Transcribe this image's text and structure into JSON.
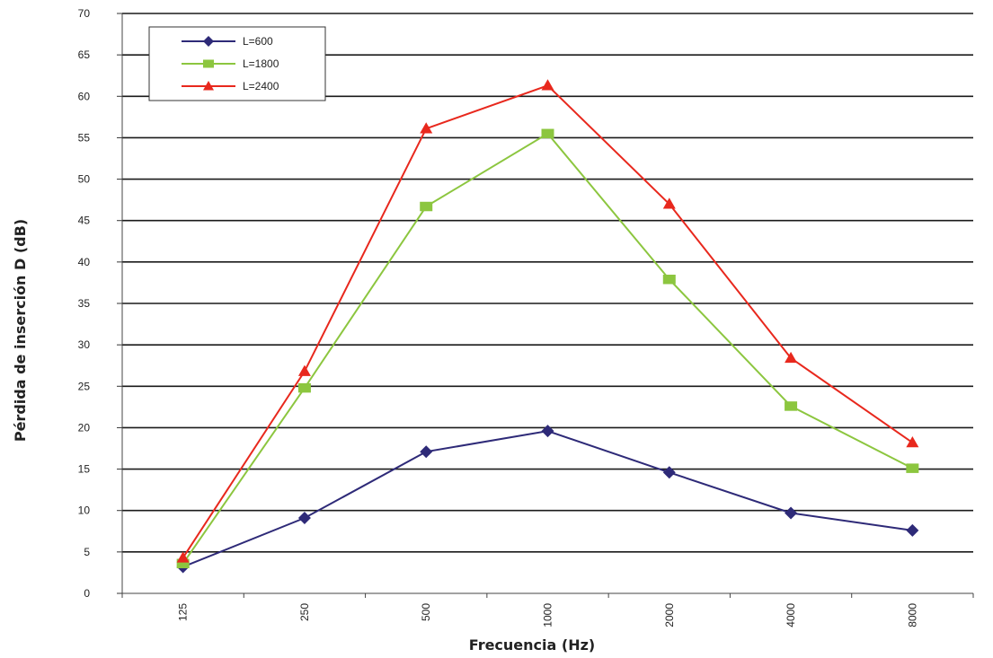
{
  "chart_data": {
    "type": "line",
    "title": "",
    "xlabel": "Frecuencia (Hz)",
    "ylabel": "Pérdida de inserción D (dB)",
    "categories": [
      "125",
      "250",
      "500",
      "1000",
      "2000",
      "4000",
      "8000"
    ],
    "ylim": [
      0,
      70
    ],
    "yticks": [
      0,
      5,
      10,
      15,
      20,
      25,
      30,
      35,
      40,
      45,
      50,
      55,
      60,
      65,
      70
    ],
    "grid": true,
    "legend_position": "top-left",
    "series": [
      {
        "name": "L=600",
        "color": "#2e2a78",
        "marker": "diamond",
        "values": [
          3.2,
          9.1,
          17.1,
          19.6,
          14.6,
          9.7,
          7.6
        ]
      },
      {
        "name": "L=1800",
        "color": "#8cc63f",
        "marker": "square",
        "values": [
          3.6,
          24.8,
          46.7,
          55.5,
          37.9,
          22.6,
          15.1
        ]
      },
      {
        "name": "L=2400",
        "color": "#e8281d",
        "marker": "triangle",
        "values": [
          4.3,
          26.8,
          56.1,
          61.3,
          47.0,
          28.4,
          18.2
        ]
      }
    ]
  }
}
